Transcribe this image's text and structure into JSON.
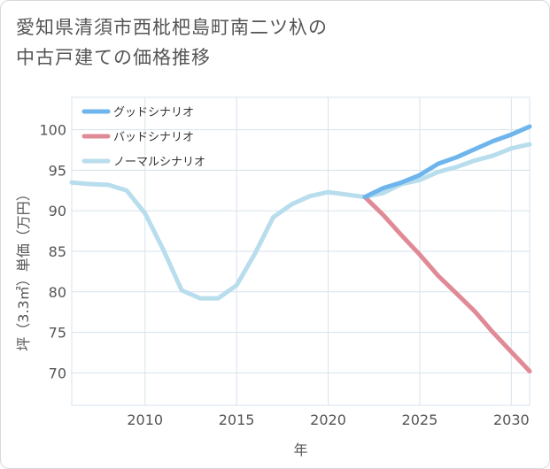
{
  "title": {
    "line1": "愛知県清須市西枇杷島町南二ツ杁の",
    "line2": "中古戸建ての価格推移"
  },
  "chart_data": {
    "type": "line",
    "xlabel": "年",
    "ylabel": "坪（3.3㎡）単価（万円）",
    "xlim": [
      2006,
      2031
    ],
    "ylim": [
      66,
      104
    ],
    "xticks": [
      2010,
      2015,
      2020,
      2025,
      2030
    ],
    "yticks": [
      70,
      75,
      80,
      85,
      90,
      95,
      100
    ],
    "grid": true,
    "legend_position": "top-left",
    "series": [
      {
        "name": "グッドシナリオ",
        "color": "#6db5ec",
        "x": [
          2022,
          2023,
          2024,
          2025,
          2026,
          2027,
          2028,
          2029,
          2030,
          2031
        ],
        "y": [
          91.7,
          92.8,
          93.5,
          94.4,
          95.8,
          96.6,
          97.6,
          98.6,
          99.4,
          100.4
        ]
      },
      {
        "name": "バッドシナリオ",
        "color": "#e08a96",
        "x": [
          2022,
          2023,
          2024,
          2025,
          2026,
          2027,
          2028,
          2029,
          2030,
          2031
        ],
        "y": [
          91.7,
          89.5,
          87.0,
          84.6,
          82.0,
          79.8,
          77.6,
          75.0,
          72.6,
          70.2
        ]
      },
      {
        "name": "ノーマルシナリオ",
        "color": "#b8dded",
        "x": [
          2006,
          2007,
          2008,
          2009,
          2010,
          2011,
          2012,
          2013,
          2014,
          2015,
          2016,
          2017,
          2018,
          2019,
          2020,
          2021,
          2022,
          2023,
          2024,
          2025,
          2026,
          2027,
          2028,
          2029,
          2030,
          2031
        ],
        "y": [
          93.5,
          93.3,
          93.2,
          92.5,
          89.7,
          85.2,
          80.2,
          79.2,
          79.2,
          80.8,
          84.7,
          89.2,
          90.8,
          91.8,
          92.3,
          92.0,
          91.7,
          92.2,
          93.3,
          93.8,
          94.8,
          95.4,
          96.2,
          96.8,
          97.7,
          98.2
        ]
      }
    ]
  }
}
